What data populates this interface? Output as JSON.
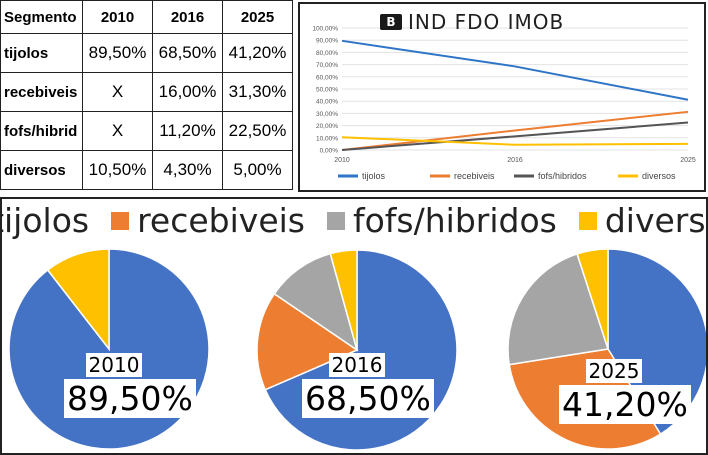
{
  "table": {
    "header": [
      "Segmento",
      "2010",
      "2016",
      "2025"
    ],
    "rows": [
      [
        "tijolos",
        "89,50%",
        "68,50%",
        "41,20%"
      ],
      [
        "recebiveis",
        "X",
        "16,00%",
        "31,30%"
      ],
      [
        "fofs/hibrid",
        "X",
        "11,20%",
        "22,50%"
      ],
      [
        "diversos",
        "10,50%",
        "4,30%",
        "5,00%"
      ]
    ]
  },
  "logo": {
    "mark": "B",
    "text": "IND FDO IMOB"
  },
  "colors": {
    "tijolos": "#4472C4",
    "recebiveis": "#ED7D31",
    "fofs_hibridos": "#A5A5A5",
    "diversos": "#FFC000"
  },
  "pie_legend": [
    "tijolos",
    "recebiveis",
    "fofs/hibridos",
    "diversos"
  ],
  "pies": [
    {
      "year": "2010",
      "value_label": "89,50%"
    },
    {
      "year": "2016",
      "value_label": "68,50%"
    },
    {
      "year": "2025",
      "value_label": "41,20%"
    }
  ],
  "chart_data": [
    {
      "type": "line",
      "x": [
        "2010",
        "2016",
        "2025"
      ],
      "ylim": [
        0,
        100
      ],
      "y_ticks": [
        "0,00%",
        "10,00%",
        "20,00%",
        "30,00%",
        "40,00%",
        "50,00%",
        "60,00%",
        "70,00%",
        "80,00%",
        "90,00%",
        "100,00%"
      ],
      "legend_position": "bottom",
      "series": [
        {
          "name": "tijolos",
          "values": [
            89.5,
            68.5,
            41.2
          ],
          "color": "#2E75C7"
        },
        {
          "name": "recebiveis",
          "values": [
            0,
            16.0,
            31.3
          ],
          "color": "#ED7D31"
        },
        {
          "name": "fofs/hibridos",
          "values": [
            0,
            11.2,
            22.5
          ],
          "color": "#555555"
        },
        {
          "name": "diversos",
          "values": [
            10.5,
            4.3,
            5.0
          ],
          "color": "#FFC000"
        }
      ]
    },
    {
      "type": "pie",
      "title": "2010",
      "categories": [
        "tijolos",
        "recebiveis",
        "fofs/hibridos",
        "diversos"
      ],
      "values": [
        89.5,
        0,
        0,
        10.5
      ]
    },
    {
      "type": "pie",
      "title": "2016",
      "categories": [
        "tijolos",
        "recebiveis",
        "fofs/hibridos",
        "diversos"
      ],
      "values": [
        68.5,
        16.0,
        11.2,
        4.3
      ]
    },
    {
      "type": "pie",
      "title": "2025",
      "categories": [
        "tijolos",
        "recebiveis",
        "fofs/hibridos",
        "diversos"
      ],
      "values": [
        41.2,
        31.3,
        22.5,
        5.0
      ]
    }
  ]
}
